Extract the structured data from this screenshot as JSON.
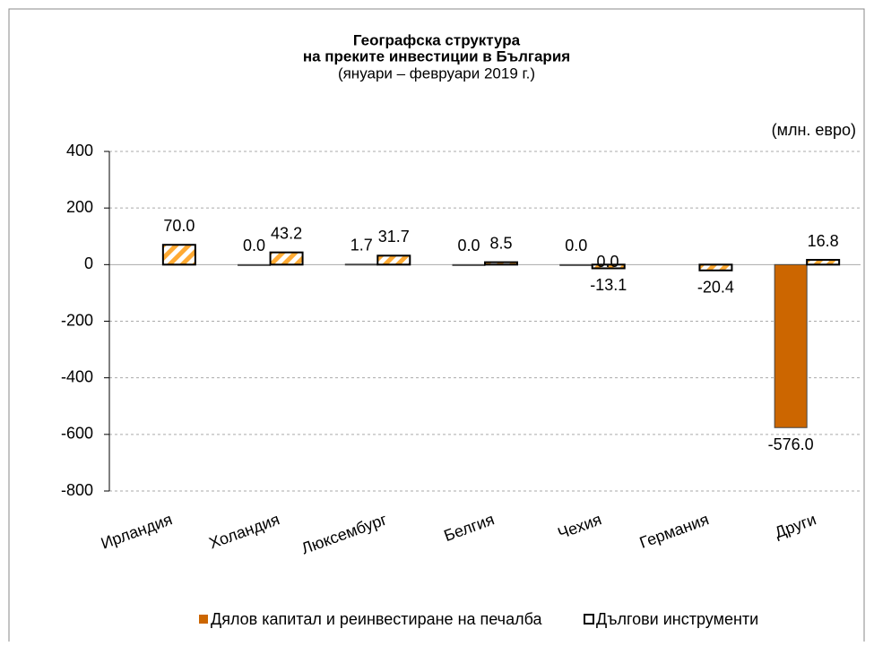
{
  "chart_data": {
    "type": "bar",
    "title": "Географска структура",
    "subtitle": "на преките инвестиции в България",
    "period": "(януари – февруари 2019 г.)",
    "unit_label": "(млн. евро)",
    "categories": [
      "Ирландия",
      "Холандия",
      "Люксембург",
      "Белгия",
      "Чехия",
      "Германия",
      "Други"
    ],
    "series": [
      {
        "name": "Дялов капитал и реинвестиране на печалба",
        "color": "#cc6600",
        "values": [
          null,
          0,
          1.7,
          0,
          0,
          null,
          -576
        ],
        "value_labels": [
          null,
          "0.0",
          "1.7",
          "0.0",
          "0.0",
          null,
          "-576.0"
        ]
      },
      {
        "name": "Дългови инструменти",
        "color": "#ffaa33",
        "values": [
          70,
          43.2,
          31.7,
          8.5,
          -13.1,
          -20.4,
          16.8
        ],
        "value_labels": [
          "70.0",
          "43.2",
          "31.7",
          "8.5",
          "-13.1",
          "-20.4",
          "16.8"
        ]
      }
    ],
    "annotations": [
      "0.0"
    ],
    "ylim": [
      -800,
      400
    ],
    "yticks": [
      -800,
      -600,
      -400,
      -200,
      0,
      200,
      400
    ],
    "grid": true,
    "legend": "bottom"
  }
}
